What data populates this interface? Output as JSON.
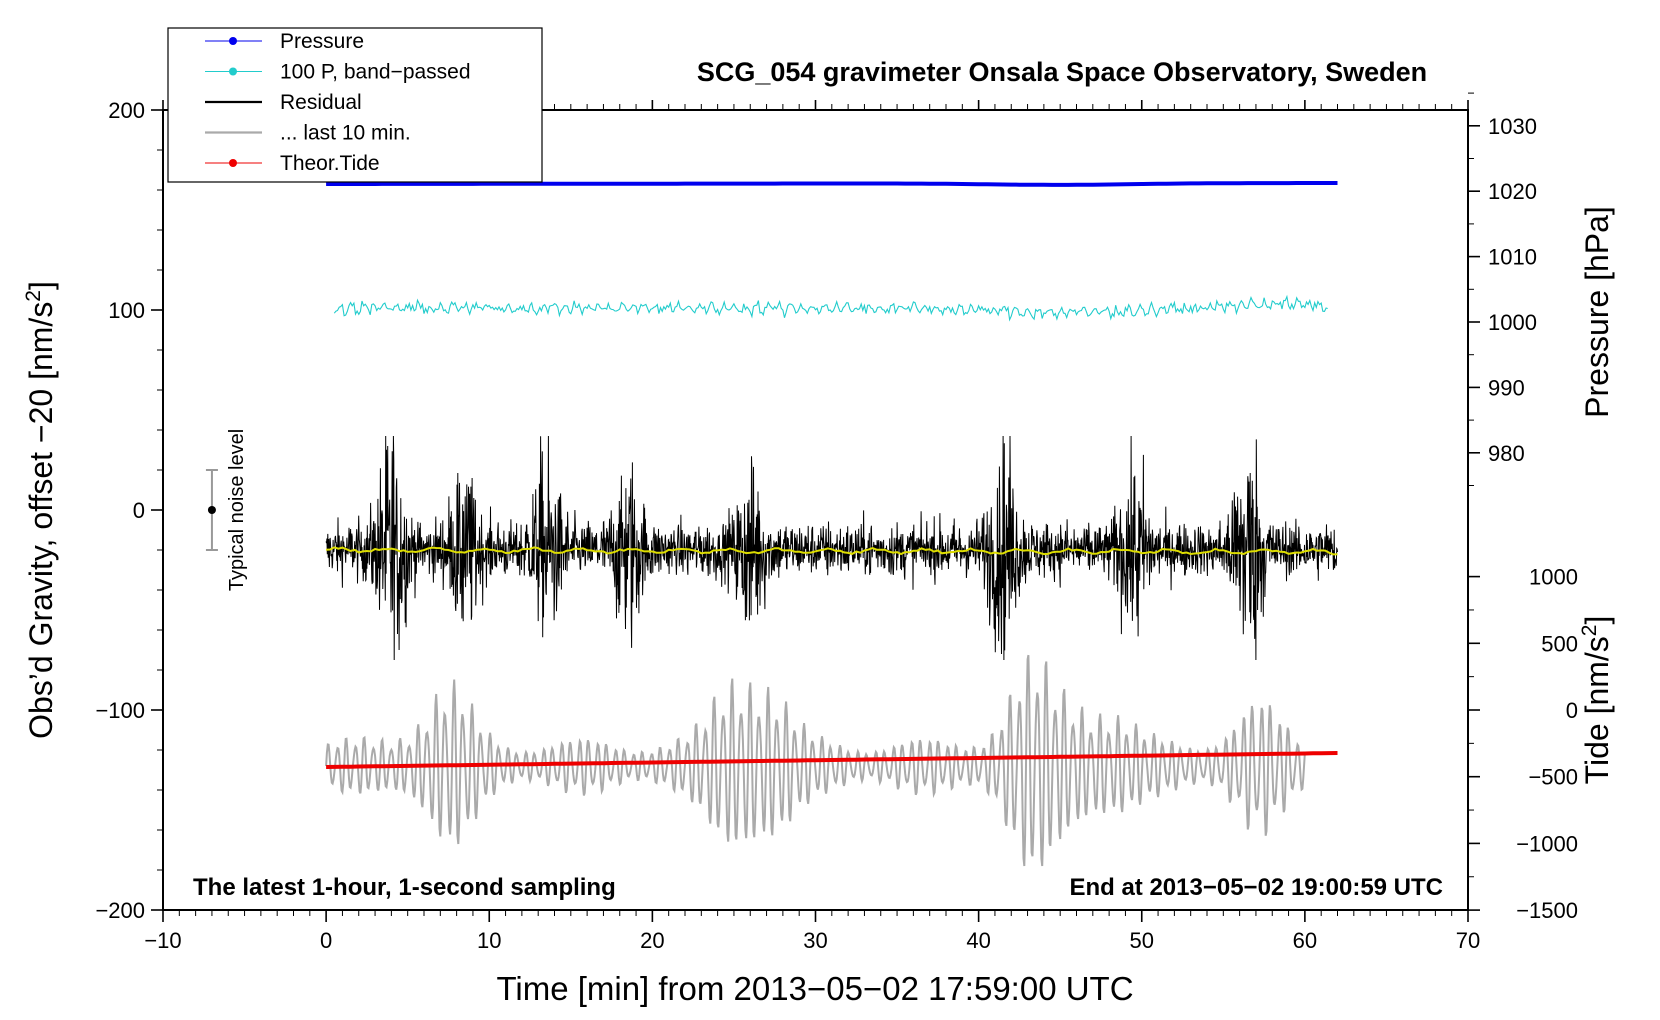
{
  "chart_data": {
    "type": "line",
    "title": "SCG_054 gravimeter Onsala Space Observatory, Sweden",
    "xlabel": "Time [min] from 2013−05−02 17:59:00 UTC",
    "ylabel_left": "Obs’d Gravity, offset −20 [nm/s",
    "ylabel_left_sup": "2",
    "ylabel_left_end": "]",
    "ylabel_right_pressure": "Pressure [hPa]",
    "ylabel_right_tide": "Tide [nm/s",
    "ylabel_right_tide_sup": "2",
    "ylabel_right_tide_end": "]",
    "xlim": [
      -10,
      70
    ],
    "ylim_left": [
      -200,
      200
    ],
    "x_ticks": [
      -10,
      0,
      10,
      20,
      30,
      40,
      50,
      60,
      70
    ],
    "x_tick_labels": [
      "−10",
      "0",
      "10",
      "20",
      "30",
      "40",
      "50",
      "60",
      "70"
    ],
    "y_ticks_left": [
      200,
      100,
      0,
      -100,
      -200
    ],
    "y_tick_labels_left": [
      "200",
      "100",
      "0",
      "−100",
      "−200"
    ],
    "pressure_ticks": [
      1030,
      1020,
      1010,
      1000,
      990,
      980
    ],
    "pressure_tick_labels": [
      "1030",
      "1020",
      "1010",
      "1000",
      "990",
      "980"
    ],
    "pressure_axis_map": {
      "p0": 1000,
      "y0": 94,
      "y_per_hpa": 3.27
    },
    "tide_ticks": [
      1000,
      500,
      0,
      -500,
      -1000,
      -1500
    ],
    "tide_tick_labels": [
      "1000",
      "500",
      "0",
      "−500",
      "−1000",
      "−1500"
    ],
    "tide_axis_map": {
      "t0": 0,
      "y0": -100,
      "y_per_nms2": 0.0667
    },
    "legend": [
      {
        "label": "Pressure",
        "color": "#0000ee",
        "style": "line-dot"
      },
      {
        "label": "100 P, band−passed",
        "color": "#22cccc",
        "style": "line-dot"
      },
      {
        "label": "Residual",
        "color": "#000000",
        "style": "line"
      },
      {
        "label": "... last 10 min.",
        "color": "#aaaaaa",
        "style": "line"
      },
      {
        "label": "Theor.Tide",
        "color": "#ee0000",
        "style": "line-dot"
      }
    ],
    "legend_position": "top-left",
    "noise_bar": {
      "label": "Typical noise level",
      "x": -7,
      "center": 0,
      "low": -20,
      "high": 20
    },
    "series": [
      {
        "name": "Pressure",
        "color": "#0000ee",
        "x_range": [
          0,
          62
        ],
        "y_start": 163,
        "y_end": 163.5,
        "approx": "flat, dips to ~162 near 40-50 min"
      },
      {
        "name": "100 P, band-passed",
        "color": "#22cccc",
        "x_range": [
          0.5,
          61.5
        ],
        "y_mean": 101,
        "y_amp": 4
      },
      {
        "name": "Residual",
        "color": "#000000",
        "x_range": [
          0,
          62
        ],
        "y_mean": -20,
        "y_range": [
          -75,
          37
        ],
        "bursts": [
          {
            "t": 4,
            "a": 52
          },
          {
            "t": 8.5,
            "a": 35
          },
          {
            "t": 13.5,
            "a": 40
          },
          {
            "t": 18.5,
            "a": 35
          },
          {
            "t": 26,
            "a": 35
          },
          {
            "t": 41.5,
            "a": 45
          },
          {
            "t": 49.5,
            "a": 40
          },
          {
            "t": 56.5,
            "a": 52
          }
        ]
      },
      {
        "name": "... last 10 min.",
        "color": "#aaaaaa",
        "x_range": [
          0,
          60
        ],
        "y_mean": -128,
        "y_range": [
          -178,
          -68
        ],
        "bursts": [
          {
            "t": 7,
            "a": 30
          },
          {
            "t": 26,
            "a": 55
          },
          {
            "t": 43,
            "a": 35
          },
          {
            "t": 47,
            "a": 30
          },
          {
            "t": 57,
            "a": 18
          }
        ]
      },
      {
        "name": "Theor.Tide",
        "color": "#ee0000",
        "x_range": [
          0,
          62
        ],
        "y_start": -128.5,
        "y_end": -121.5
      }
    ],
    "annotation_left": "The latest 1-hour, 1-second sampling",
    "annotation_right": "End at 2013−05−02 19:00:59 UTC"
  }
}
